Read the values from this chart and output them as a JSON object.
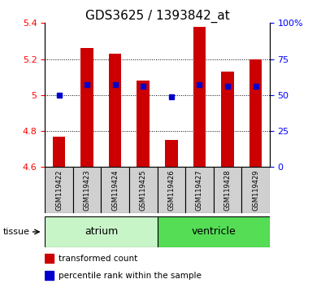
{
  "title": "GDS3625 / 1393842_at",
  "samples": [
    "GSM119422",
    "GSM119423",
    "GSM119424",
    "GSM119425",
    "GSM119426",
    "GSM119427",
    "GSM119428",
    "GSM119429"
  ],
  "transformed_counts": [
    4.77,
    5.26,
    5.23,
    5.08,
    4.75,
    5.38,
    5.13,
    5.2
  ],
  "percentile_ranks": [
    50,
    57,
    57,
    56,
    49,
    57,
    56,
    56
  ],
  "ylim_left": [
    4.6,
    5.4
  ],
  "ylim_right": [
    0,
    100
  ],
  "yticks_left": [
    4.6,
    4.8,
    5.0,
    5.2,
    5.4
  ],
  "yticks_right": [
    0,
    25,
    50,
    75,
    100
  ],
  "ytick_labels_right": [
    "0",
    "25",
    "50",
    "75",
    "100%"
  ],
  "groups": [
    {
      "label": "atrium",
      "indices": [
        0,
        1,
        2,
        3
      ],
      "color": "#c8f5c8"
    },
    {
      "label": "ventricle",
      "indices": [
        4,
        5,
        6,
        7
      ],
      "color": "#55dd55"
    }
  ],
  "bar_color": "#cc0000",
  "marker_color": "#0000cc",
  "bar_bottom": 4.6,
  "title_fontsize": 11,
  "tick_fontsize": 8,
  "sample_fontsize": 6,
  "legend_fontsize": 7.5,
  "group_label_fontsize": 9,
  "tissue_label": "tissue",
  "tissue_fontsize": 8
}
